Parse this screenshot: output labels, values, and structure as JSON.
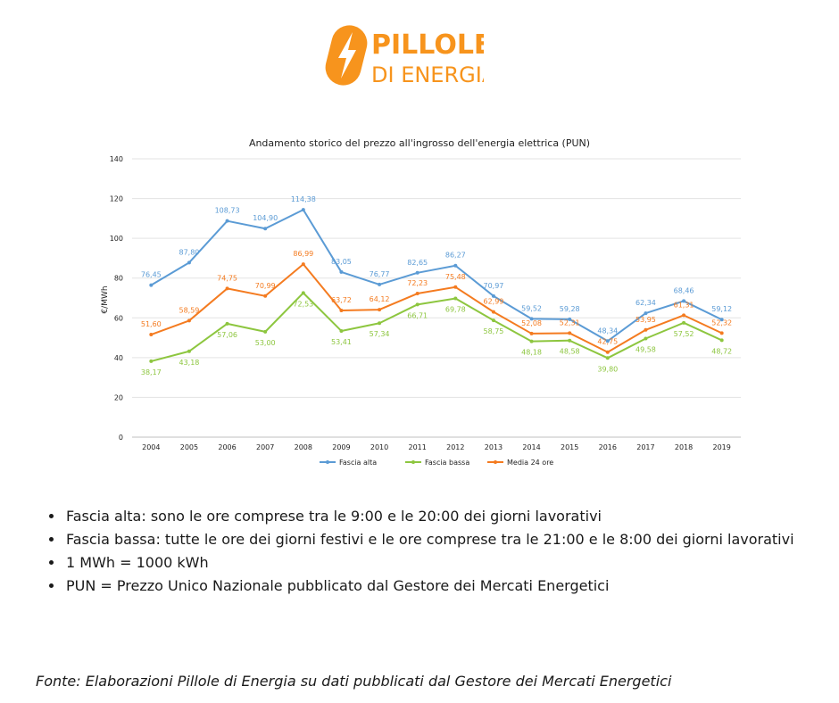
{
  "brand": {
    "name_line1": "PILLOLE",
    "name_line2": "DI ENERGIA",
    "color": "#F7941D"
  },
  "chart_data": {
    "type": "line",
    "title": "Andamento storico del prezzo all'ingrosso dell'energia elettrica (PUN)",
    "xlabel": "",
    "ylabel": "€/MWh",
    "ylim": [
      0,
      140
    ],
    "yticks": [
      0,
      20,
      40,
      60,
      80,
      100,
      120,
      140
    ],
    "grid": true,
    "legend_position": "bottom",
    "x": [
      "2004",
      "2005",
      "2006",
      "2007",
      "2008",
      "2009",
      "2010",
      "2011",
      "2012",
      "2013",
      "2014",
      "2015",
      "2016",
      "2017",
      "2018",
      "2019"
    ],
    "series": [
      {
        "name": "Fascia alta",
        "color": "#5B9BD5",
        "values": [
          76.45,
          87.8,
          108.73,
          104.9,
          114.38,
          83.05,
          76.77,
          82.65,
          86.27,
          70.97,
          59.52,
          59.28,
          48.34,
          62.34,
          68.46,
          59.12
        ],
        "labels": [
          "76,45",
          "87,80",
          "108,73",
          "104,90",
          "114,38",
          "83,05",
          "76,77",
          "82,65",
          "86,27",
          "70,97",
          "59,52",
          "59,28",
          "48,34",
          "62,34",
          "68,46",
          "59,12"
        ]
      },
      {
        "name": "Fascia bassa",
        "color": "#8DC63F",
        "values": [
          38.17,
          43.18,
          57.06,
          53.0,
          72.53,
          53.41,
          57.34,
          66.71,
          69.78,
          58.75,
          48.18,
          48.58,
          39.8,
          49.58,
          57.52,
          48.72
        ],
        "labels": [
          "38,17",
          "43,18",
          "57,06",
          "53,00",
          "72,53",
          "53,41",
          "57,34",
          "66,71",
          "69,78",
          "58,75",
          "48,18",
          "48,58",
          "39,80",
          "49,58",
          "57,52",
          "48,72"
        ]
      },
      {
        "name": "Media 24 ore",
        "color": "#F47B20",
        "values": [
          51.6,
          58.59,
          74.75,
          70.99,
          86.99,
          63.72,
          64.12,
          72.23,
          75.48,
          62.99,
          52.08,
          52.31,
          42.75,
          53.95,
          61.31,
          52.32
        ],
        "labels": [
          "51,60",
          "58,59",
          "74,75",
          "70,99",
          "86,99",
          "63,72",
          "64,12",
          "72,23",
          "75,48",
          "62,99",
          "52,08",
          "52,31",
          "42,75",
          "53,95",
          "61,31",
          "52,32"
        ]
      }
    ]
  },
  "notes": [
    "Fascia alta: sono le ore comprese tra le 9:00 e le 20:00 dei giorni lavorativi",
    "Fascia bassa: tutte le ore dei giorni festivi e le ore comprese tra le 21:00 e le 8:00 dei giorni lavorativi",
    "1 MWh = 1000 kWh",
    "PUN = Prezzo Unico Nazionale pubblicato dal Gestore dei Mercati Energetici"
  ],
  "source": "Fonte: Elaborazioni Pillole di Energia su dati pubblicati dal Gestore dei Mercati Energetici"
}
